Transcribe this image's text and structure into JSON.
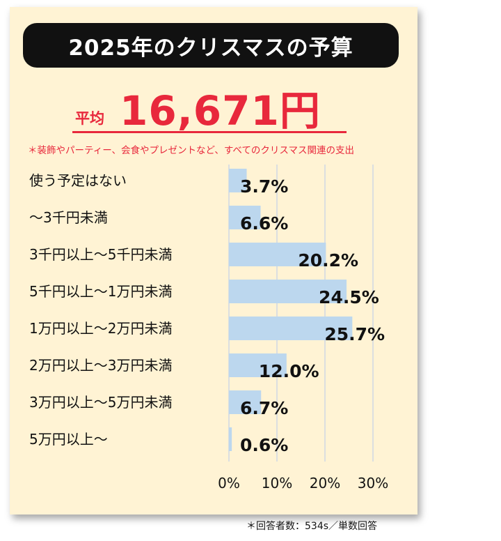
{
  "title": "2025年のクリスマスの予算",
  "average": {
    "label": "平均",
    "value": "16,671円"
  },
  "note": "＊装飾やパーティー、会食やプレゼントなど、すべてのクリスマス関連の支出",
  "footnote": "＊回答者数：534s／単数回答",
  "colors": {
    "bar": "#bcd7ee",
    "accent": "#e8283c",
    "card": "#fff3d4",
    "grid": "#cfd8e3"
  },
  "chart_data": {
    "type": "bar",
    "orientation": "horizontal",
    "categories": [
      "使う予定はない",
      "～3千円未満",
      "3千円以上～5千円未満",
      "5千円以上～1万円未満",
      "1万円以上～2万円未満",
      "2万円以上～3万円未満",
      "3万円以上～5万円未満",
      "5万円以上～"
    ],
    "values": [
      3.7,
      6.6,
      20.2,
      24.5,
      25.7,
      12.0,
      6.7,
      0.6
    ],
    "value_labels": [
      "3.7%",
      "6.6%",
      "20.2%",
      "24.5%",
      "25.7%",
      "12.0%",
      "6.7%",
      "0.6%"
    ],
    "xlim": [
      0,
      30
    ],
    "xticks": [
      0,
      10,
      20,
      30
    ],
    "xtick_labels": [
      "0%",
      "10%",
      "20%",
      "30%"
    ],
    "grid": true
  }
}
